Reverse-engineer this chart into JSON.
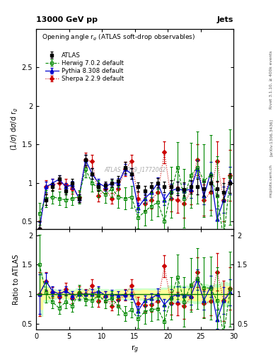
{
  "title_top": "13000 GeV pp",
  "title_right": "Jets",
  "plot_title": "Opening angle r$_g$ (ATLAS soft-drop observables)",
  "watermark": "ATLAS_2019_I1772062",
  "rivet_label": "Rivet 3.1.10, ≥ 400k events",
  "arxiv_label": "[arXiv:1306.3436]",
  "mcplots_label": "mcplots.cern.ch",
  "atlas_x": [
    0.5,
    1.5,
    2.5,
    3.5,
    4.5,
    5.5,
    6.5,
    7.5,
    8.5,
    9.5,
    10.5,
    11.5,
    12.5,
    13.5,
    14.5,
    15.5,
    16.5,
    17.5,
    18.5,
    19.5,
    20.5,
    21.5,
    22.5,
    23.5,
    24.5,
    25.5,
    26.5,
    27.5,
    28.5,
    29.5
  ],
  "atlas_y": [
    0.4,
    0.78,
    0.95,
    1.05,
    0.9,
    1.0,
    0.8,
    1.3,
    1.12,
    0.95,
    0.97,
    1.0,
    1.03,
    1.2,
    1.12,
    0.95,
    0.9,
    0.95,
    1.0,
    0.95,
    0.95,
    0.93,
    0.92,
    0.95,
    0.95,
    0.93,
    1.0,
    0.93,
    0.88,
    1.0
  ],
  "atlas_yerr": [
    0.1,
    0.07,
    0.05,
    0.05,
    0.05,
    0.05,
    0.05,
    0.07,
    0.07,
    0.05,
    0.05,
    0.05,
    0.06,
    0.07,
    0.07,
    0.06,
    0.06,
    0.06,
    0.06,
    0.07,
    0.09,
    0.09,
    0.09,
    0.09,
    0.1,
    0.1,
    0.1,
    0.1,
    0.12,
    0.13
  ],
  "herwig_x": [
    0.5,
    1.5,
    2.5,
    3.5,
    4.5,
    5.5,
    6.5,
    7.5,
    8.5,
    9.5,
    10.5,
    11.5,
    12.5,
    13.5,
    14.5,
    15.5,
    16.5,
    17.5,
    18.5,
    19.5,
    20.5,
    21.5,
    22.5,
    23.5,
    24.5,
    25.5,
    26.5,
    27.5,
    28.5,
    29.5
  ],
  "herwig_y": [
    0.6,
    0.8,
    0.82,
    0.8,
    0.78,
    0.8,
    0.82,
    1.18,
    1.0,
    0.93,
    0.85,
    0.93,
    0.82,
    0.8,
    0.82,
    0.55,
    0.63,
    0.7,
    0.75,
    0.5,
    0.88,
    1.2,
    0.8,
    1.1,
    1.2,
    1.03,
    1.1,
    0.83,
    0.28,
    1.08
  ],
  "herwig_yerr": [
    0.14,
    0.11,
    0.09,
    0.09,
    0.09,
    0.09,
    0.09,
    0.11,
    0.11,
    0.11,
    0.11,
    0.11,
    0.14,
    0.14,
    0.14,
    0.14,
    0.18,
    0.18,
    0.18,
    0.28,
    0.33,
    0.33,
    0.38,
    0.42,
    0.47,
    0.47,
    0.52,
    0.52,
    0.52,
    0.62
  ],
  "pythia_x": [
    0.5,
    1.5,
    2.5,
    3.5,
    4.5,
    5.5,
    6.5,
    7.5,
    8.5,
    9.5,
    10.5,
    11.5,
    12.5,
    13.5,
    14.5,
    15.5,
    16.5,
    17.5,
    18.5,
    19.5,
    20.5,
    21.5,
    22.5,
    23.5,
    24.5,
    25.5,
    26.5,
    27.5,
    28.5,
    29.5
  ],
  "pythia_y": [
    0.4,
    0.95,
    1.0,
    1.05,
    0.95,
    0.98,
    0.8,
    1.3,
    1.12,
    1.0,
    0.95,
    1.0,
    1.0,
    1.18,
    1.12,
    0.68,
    0.8,
    0.88,
    1.0,
    0.78,
    0.9,
    0.93,
    0.9,
    0.92,
    1.18,
    0.83,
    1.13,
    0.53,
    0.78,
    1.03
  ],
  "pythia_yerr": [
    0.09,
    0.07,
    0.05,
    0.05,
    0.05,
    0.05,
    0.05,
    0.07,
    0.07,
    0.05,
    0.05,
    0.05,
    0.06,
    0.07,
    0.07,
    0.06,
    0.06,
    0.06,
    0.07,
    0.07,
    0.09,
    0.09,
    0.09,
    0.11,
    0.11,
    0.11,
    0.14,
    0.14,
    0.17,
    0.18
  ],
  "sherpa_x": [
    0.5,
    1.5,
    2.5,
    3.5,
    4.5,
    5.5,
    6.5,
    7.5,
    8.5,
    9.5,
    10.5,
    11.5,
    12.5,
    13.5,
    14.5,
    15.5,
    16.5,
    17.5,
    18.5,
    19.5,
    20.5,
    21.5,
    22.5,
    23.5,
    24.5,
    25.5,
    26.5,
    27.5,
    28.5,
    29.5
  ],
  "sherpa_y": [
    0.4,
    0.95,
    0.98,
    1.0,
    0.98,
    0.93,
    0.82,
    1.3,
    1.28,
    0.83,
    0.93,
    0.8,
    0.93,
    1.18,
    1.28,
    0.8,
    0.73,
    0.78,
    0.88,
    1.4,
    0.8,
    0.78,
    0.73,
    0.9,
    1.3,
    0.78,
    0.88,
    1.28,
    0.78,
    1.1
  ],
  "sherpa_yerr": [
    0.11,
    0.09,
    0.07,
    0.07,
    0.07,
    0.07,
    0.07,
    0.09,
    0.09,
    0.07,
    0.07,
    0.07,
    0.09,
    0.09,
    0.09,
    0.09,
    0.09,
    0.11,
    0.11,
    0.14,
    0.17,
    0.17,
    0.18,
    0.18,
    0.2,
    0.2,
    0.23,
    0.26,
    0.28,
    0.33
  ],
  "atlas_color": "#000000",
  "herwig_color": "#008800",
  "pythia_color": "#0000cc",
  "sherpa_color": "#cc0000",
  "ylim_main": [
    0.4,
    3.0
  ],
  "ylim_ratio": [
    0.4,
    2.1
  ],
  "xlim": [
    0,
    30
  ],
  "yticks_main": [
    0.5,
    1.0,
    1.5,
    2.0,
    2.5,
    3.0
  ],
  "yticks_ratio": [
    0.5,
    1.0,
    1.5,
    2.0
  ],
  "xticks": [
    0,
    5,
    10,
    15,
    20,
    25,
    30
  ]
}
